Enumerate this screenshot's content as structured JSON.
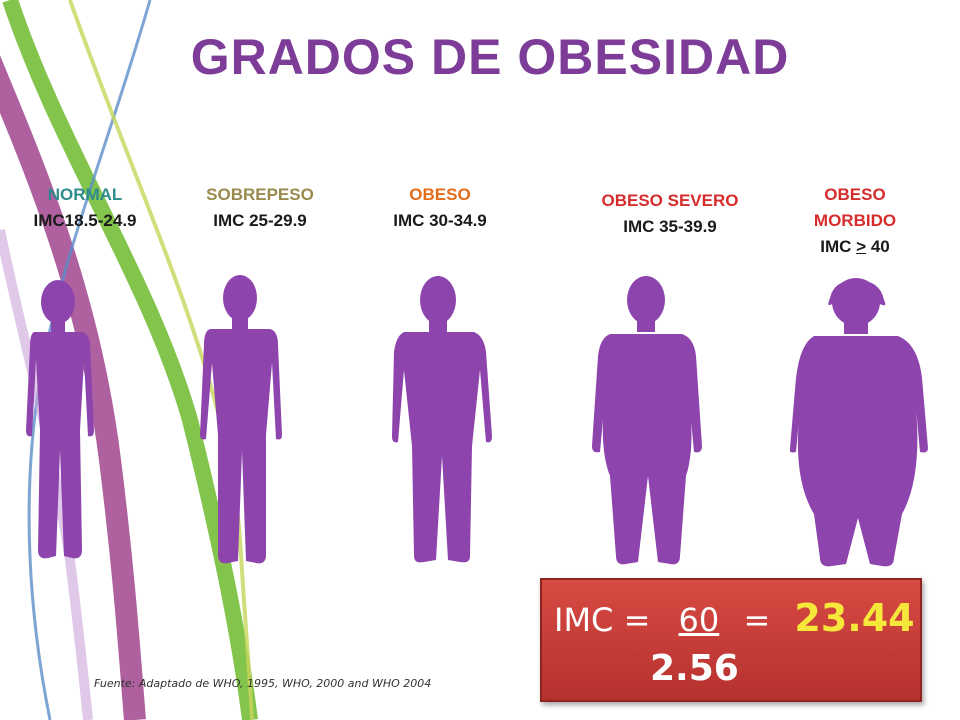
{
  "title": "GRADOS DE OBESIDAD",
  "categories": [
    {
      "name": "NORMAL",
      "range": "IMC18.5-24.9",
      "color": "#2e8b8b"
    },
    {
      "name": "SOBREPESO",
      "range": "IMC 25-29.9",
      "color": "#9b8a4e"
    },
    {
      "name": "OBESO",
      "range": "IMC 30-34.9",
      "color": "#e36c1b"
    },
    {
      "name": "OBESO SEVERO",
      "range": "IMC 35-39.9",
      "color": "#d62c2c"
    },
    {
      "name": "OBESO MORBIDO",
      "name_line1": "OBESO",
      "name_line2": "MORBIDO",
      "range_prefix": "IMC",
      "range_symbol": ">",
      "range_value": "40",
      "color": "#d62c2c"
    }
  ],
  "figure_color": "#8e44ad",
  "formula": {
    "label": "IMC =",
    "numerator": "60",
    "equals": "=",
    "result": "23.44",
    "denominator": "2.56"
  },
  "source": "Fuente: Adaptado de WHO, 1995, WHO, 2000 and WHO 2004"
}
